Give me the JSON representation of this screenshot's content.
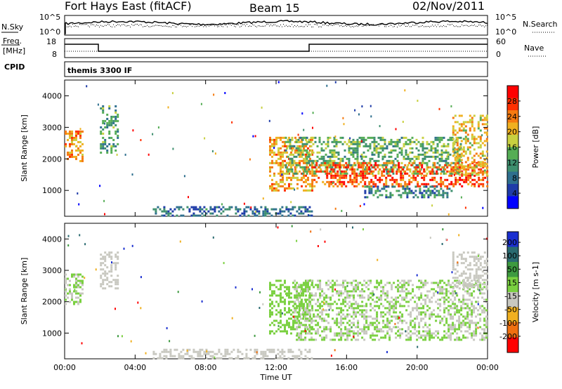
{
  "header": {
    "station": "Fort Hays East (fitACF)",
    "beam": "Beam 15",
    "date": "02/Nov/2011"
  },
  "strips": {
    "nsky_label": "N.Sky",
    "nsky_tick_top": "10^5",
    "nsky_tick_bottom": "10^0",
    "nsearch_label": "N.Search",
    "freq_label_1": "Freq.",
    "freq_label_2": "[MHz]",
    "freq_tick_top": "18",
    "freq_tick_bottom": "8",
    "nave_label": "Nave",
    "nave_tick_top": "60",
    "nave_tick_bottom": "0",
    "cpid_label": "CPID",
    "cpid_text": "themis 3300 IF"
  },
  "chart_data": [
    {
      "type": "heatmap",
      "panel": "power",
      "ylabel": "Slant Range [km]",
      "xlabel": "Time UT",
      "x_ticks": [
        "00:00",
        "04:00",
        "08:00",
        "12:00",
        "16:00",
        "20:00",
        "00:00"
      ],
      "xlim_hours": [
        0,
        24
      ],
      "y_ticks": [
        1000,
        2000,
        3000,
        4000
      ],
      "ylim": [
        180,
        4500
      ],
      "colorbar_label": "Power [dB]",
      "colorbar_ticks": [
        4,
        8,
        12,
        16,
        20,
        24,
        28
      ],
      "colorbar_range": [
        0,
        32
      ],
      "colormap": [
        "#0000ff",
        "#1e3ba8",
        "#2e6f8e",
        "#3e8f6e",
        "#55ad55",
        "#c8d040",
        "#f0b020",
        "#f57a10",
        "#ff3000",
        "#ff0000"
      ],
      "regions": [
        {
          "t0": 0.0,
          "t1": 1.0,
          "r0": 1900,
          "r1": 2900,
          "value": 22
        },
        {
          "t0": 2.0,
          "t1": 3.0,
          "r0": 2200,
          "r1": 3700,
          "value": 12
        },
        {
          "t0": 11.6,
          "t1": 14.0,
          "r0": 1000,
          "r1": 2700,
          "value": 22
        },
        {
          "t0": 12.5,
          "t1": 22.5,
          "r0": 1500,
          "r1": 2700,
          "value": 14
        },
        {
          "t0": 14.0,
          "t1": 24.0,
          "r0": 1100,
          "r1": 1900,
          "value": 26
        },
        {
          "t0": 17.0,
          "t1": 22.0,
          "r0": 800,
          "r1": 1150,
          "value": 10
        },
        {
          "t0": 22.0,
          "t1": 24.0,
          "r0": 1500,
          "r1": 3400,
          "value": 20
        },
        {
          "t0": 5.0,
          "t1": 14.0,
          "r0": 180,
          "r1": 500,
          "value": 8
        }
      ]
    },
    {
      "type": "heatmap",
      "panel": "velocity",
      "ylabel": "Slant Range [km]",
      "xlabel": "Time UT",
      "x_ticks": [
        "00:00",
        "04:00",
        "08:00",
        "12:00",
        "16:00",
        "20:00",
        "00:00"
      ],
      "xlim_hours": [
        0,
        24
      ],
      "y_ticks": [
        1000,
        2000,
        3000,
        4000
      ],
      "ylim": [
        180,
        4500
      ],
      "colorbar_label": "Velocity [m s-1]",
      "colorbar_ticks": [
        200,
        100,
        50,
        15,
        -15,
        -50,
        -100,
        -200
      ],
      "colorbar_range": [
        -250,
        250
      ],
      "colormap": [
        "#1a2fd0",
        "#2a6a70",
        "#3e9a40",
        "#7ad040",
        "#c8c8c0",
        "#f0b020",
        "#f07010",
        "#ff0000"
      ],
      "regions": [
        {
          "t0": 0.0,
          "t1": 1.0,
          "r0": 1900,
          "r1": 2900,
          "value": 0
        },
        {
          "t0": 2.0,
          "t1": 3.0,
          "r0": 2400,
          "r1": 3600,
          "value": -30
        },
        {
          "t0": 11.6,
          "t1": 14.0,
          "r0": 1000,
          "r1": 2700,
          "value": 40
        },
        {
          "t0": 13.0,
          "t1": 24.0,
          "r0": 800,
          "r1": 2700,
          "value": 0
        },
        {
          "t0": 22.0,
          "t1": 24.0,
          "r0": 2400,
          "r1": 3600,
          "value": -40
        },
        {
          "t0": 5.0,
          "t1": 14.0,
          "r0": 180,
          "r1": 500,
          "value": -40
        }
      ]
    }
  ]
}
